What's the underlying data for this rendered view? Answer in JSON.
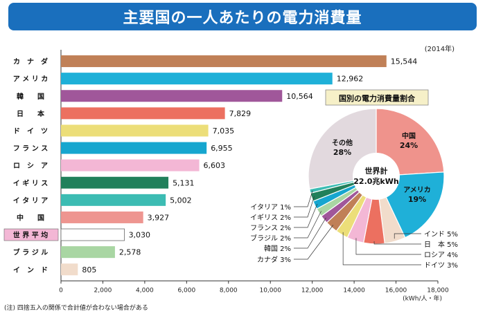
{
  "title": "主要国の一人あたりの電力消費量",
  "year_note": "(2014年)",
  "footnote": "(注) 四捨五入の関係で合計値が合わない場合がある",
  "chart_data": [
    {
      "type": "bar",
      "orientation": "horizontal",
      "categories": [
        "カナダ",
        "アメリカ",
        "韓国",
        "日本",
        "ドイツ",
        "フランス",
        "ロシア",
        "イギリス",
        "イタリア",
        "中国",
        "世界平均",
        "ブラジル",
        "インド"
      ],
      "category_labels": [
        "カ　ナ　ダ",
        "ア メ リ カ",
        "韓　　国",
        "日　　本",
        "ド　イ　ツ",
        "フ ラ ン ス",
        "ロ　シ　ア",
        "イ ギ リ ス",
        "イ タ リ ア",
        "中　　国",
        "世 界 平 均",
        "ブ ラ ジ ル",
        "イ　ン　ド"
      ],
      "values": [
        15544,
        12962,
        10564,
        7829,
        7035,
        6955,
        6603,
        5131,
        5002,
        3927,
        3030,
        2578,
        805
      ],
      "value_labels": [
        "15,544",
        "12,962",
        "10,564",
        "7,829",
        "7,035",
        "6,955",
        "6,603",
        "5,131",
        "5,002",
        "3,927",
        "3,030",
        "2,578",
        "805"
      ],
      "colors": [
        "#c08057",
        "#1fb0d8",
        "#a0579a",
        "#ec7060",
        "#ecde79",
        "#16a6cf",
        "#f3b7d5",
        "#21805b",
        "#3cbcb3",
        "#ee9590",
        "#ffffff",
        "#a9d6a3",
        "#f1dccb"
      ],
      "highlight_category": "世界平均",
      "highlight_label_bg": "#f3b7d5",
      "xlim": [
        0,
        18000
      ],
      "xticks": [
        0,
        2000,
        4000,
        6000,
        8000,
        10000,
        12000,
        14000,
        16000,
        18000
      ],
      "xtick_labels": [
        "0",
        "2,000",
        "4,000",
        "6,000",
        "8,000",
        "10,000",
        "12,000",
        "14,000",
        "16,000",
        "18,000"
      ],
      "xunit": "(kWh/人・年)"
    },
    {
      "type": "pie",
      "title": "国別の電力消費量割合",
      "center_label": [
        "世界計",
        "22.0兆kWh"
      ],
      "slices": [
        {
          "name": "中国",
          "value": 24,
          "label": "24%",
          "color": "#ef938c"
        },
        {
          "name": "アメリカ",
          "value": 19,
          "label": "19%",
          "color": "#1fb0d8"
        },
        {
          "name": "インド",
          "value": 5,
          "label": "5%",
          "color": "#f1dccb"
        },
        {
          "name": "日本",
          "value": 5,
          "label": "5%",
          "color": "#ec7060"
        },
        {
          "name": "ロシア",
          "value": 4,
          "label": "4%",
          "color": "#f3b7d5"
        },
        {
          "name": "ドイツ",
          "value": 3,
          "label": "3%",
          "color": "#ecde79"
        },
        {
          "name": "カナダ",
          "value": 3,
          "label": "3%",
          "color": "#c08057"
        },
        {
          "name": "韓国",
          "value": 2,
          "label": "2%",
          "color": "#a0579a"
        },
        {
          "name": "ブラジル",
          "value": 2,
          "label": "2%",
          "color": "#a9d6a3"
        },
        {
          "name": "フランス",
          "value": 2,
          "label": "2%",
          "color": "#16a6cf"
        },
        {
          "name": "イギリス",
          "value": 2,
          "label": "2%",
          "color": "#21805b"
        },
        {
          "name": "イタリア",
          "value": 1,
          "label": "1%",
          "color": "#3cbcb3"
        },
        {
          "name": "その他",
          "value": 28,
          "label": "28%",
          "color": "#e2d9de"
        }
      ],
      "outside_labels": [
        "インド 5%",
        "日　本 5%",
        "ロシア 4%",
        "ドイツ 3%",
        "イタリア 1%",
        "イギリス 2%",
        "フランス 2%",
        "ブラジル 2%",
        "韓国 2%",
        "カナダ 3%"
      ]
    }
  ]
}
